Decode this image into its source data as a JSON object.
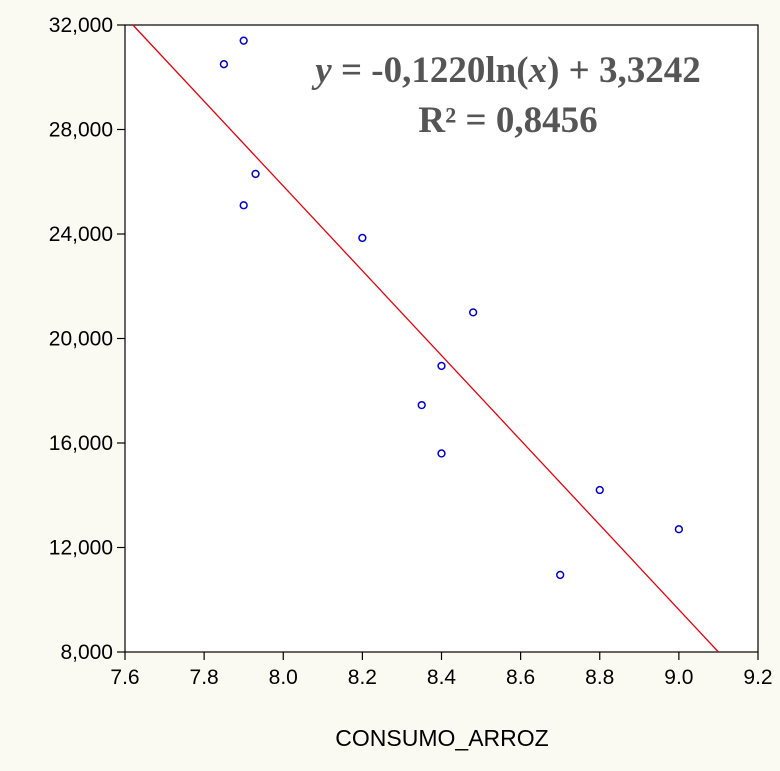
{
  "chart_data": {
    "type": "scatter",
    "title": "",
    "xlabel": "CONSUMO_ARROZ",
    "ylabel": "",
    "xlim": [
      7.6,
      9.2
    ],
    "ylim": [
      8000,
      32000
    ],
    "xticks": [
      7.6,
      7.8,
      8.0,
      8.2,
      8.4,
      8.6,
      8.8,
      9.0,
      9.2
    ],
    "xtick_labels": [
      "7.6",
      "7.8",
      "8.0",
      "8.2",
      "8.4",
      "8.6",
      "8.8",
      "9.0",
      "9.2"
    ],
    "yticks": [
      8000,
      12000,
      16000,
      20000,
      24000,
      28000,
      32000
    ],
    "ytick_labels": [
      "8,000",
      "12,000",
      "16,000",
      "20,000",
      "24,000",
      "28,000",
      "32,000"
    ],
    "grid": false,
    "series": [
      {
        "marker": "open-circle",
        "color": "#0000cc",
        "points": [
          {
            "x": 7.85,
            "y": 30500
          },
          {
            "x": 7.9,
            "y": 31400
          },
          {
            "x": 7.93,
            "y": 26300
          },
          {
            "x": 7.9,
            "y": 25100
          },
          {
            "x": 8.2,
            "y": 23850
          },
          {
            "x": 8.48,
            "y": 21000
          },
          {
            "x": 8.4,
            "y": 18950
          },
          {
            "x": 8.35,
            "y": 17450
          },
          {
            "x": 8.4,
            "y": 15600
          },
          {
            "x": 8.8,
            "y": 14200
          },
          {
            "x": 9.0,
            "y": 12700
          },
          {
            "x": 8.7,
            "y": 10950
          }
        ]
      }
    ],
    "trendline": {
      "color": "#e8000b",
      "points": [
        {
          "x": 7.62,
          "y": 32000
        },
        {
          "x": 9.1,
          "y": 8000
        }
      ]
    },
    "annotations": {
      "equation_y": "y",
      "equation_mid": " = -0,1220ln(",
      "equation_x": "x",
      "equation_end": ") + 3,3242",
      "r_squared": "R² = 0,8456"
    }
  }
}
